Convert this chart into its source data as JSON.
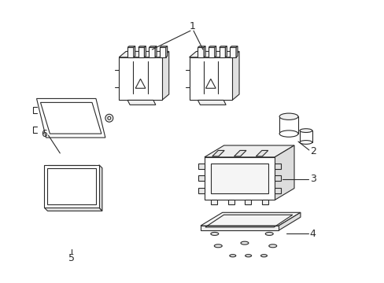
{
  "background_color": "#ffffff",
  "line_color": "#2a2a2a",
  "label_color": "#000000",
  "figsize": [
    4.89,
    3.6
  ],
  "dpi": 100,
  "lw": 0.8
}
